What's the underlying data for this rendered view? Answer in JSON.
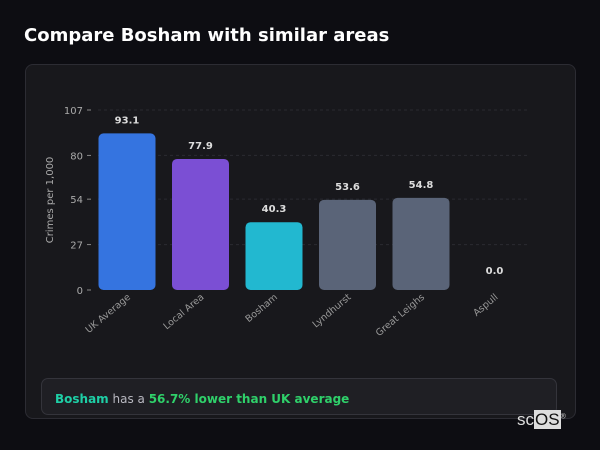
{
  "header": {
    "title": "Compare Bosham with similar areas"
  },
  "chart_data": {
    "type": "bar",
    "categories": [
      "UK Average",
      "Local Area",
      "Bosham",
      "Lyndhurst",
      "Great Leighs",
      "Aspull"
    ],
    "values": [
      93.1,
      77.9,
      40.3,
      53.6,
      54.8,
      0.0
    ],
    "value_labels": [
      "93.1",
      "77.9",
      "40.3",
      "53.6",
      "54.8",
      "0.0"
    ],
    "colors": [
      "#3574e0",
      "#7b4fd4",
      "#22b8d0",
      "#5a6478",
      "#5a6478",
      "#5a6478"
    ],
    "ylabel": "Crimes per 1,000",
    "xlabel": "",
    "ylim": [
      0,
      107
    ],
    "yticks": [
      0,
      27,
      54,
      80,
      107
    ],
    "grid": true
  },
  "summary": {
    "area": "Bosham",
    "middle": " has a ",
    "comparison": "56.7% lower than UK average"
  },
  "logo": {
    "text_a": "sc",
    "text_b": "OS",
    "mark": "®"
  }
}
